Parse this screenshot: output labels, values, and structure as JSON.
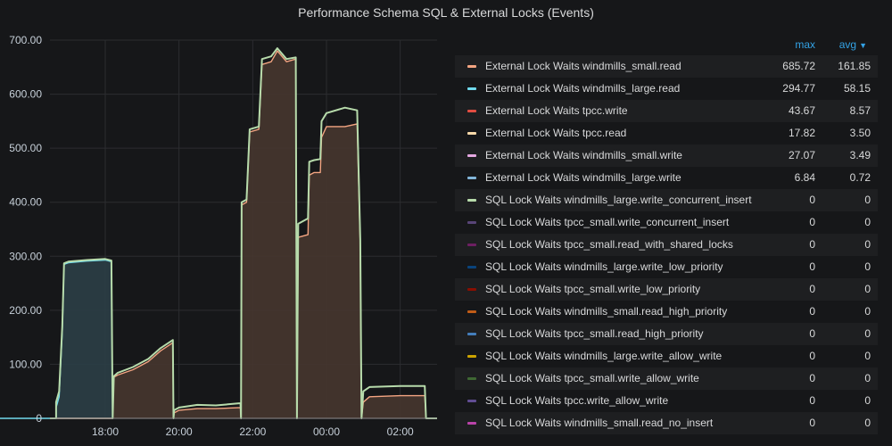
{
  "panel": {
    "title": "Performance Schema SQL & External Locks (Events)"
  },
  "legend": {
    "header_max": "max",
    "header_avg": "avg",
    "sort_icon": "chevron-down-icon",
    "rows": [
      {
        "name": "External Lock Waits windmills_small.read",
        "max": "685.72",
        "avg": "161.85",
        "color": "#f4a582"
      },
      {
        "name": "External Lock Waits windmills_large.read",
        "max": "294.77",
        "avg": "58.15",
        "color": "#70dbed"
      },
      {
        "name": "External Lock Waits tpcc.write",
        "max": "43.67",
        "avg": "8.57",
        "color": "#e24d42"
      },
      {
        "name": "External Lock Waits tpcc.read",
        "max": "17.82",
        "avg": "3.50",
        "color": "#f9d9a9"
      },
      {
        "name": "External Lock Waits windmills_small.write",
        "max": "27.07",
        "avg": "3.49",
        "color": "#e5a8e2"
      },
      {
        "name": "External Lock Waits windmills_large.write",
        "max": "6.84",
        "avg": "0.72",
        "color": "#82b5d8"
      },
      {
        "name": "SQL Lock Waits windmills_large.write_concurrent_insert",
        "max": "0",
        "avg": "0",
        "color": "#b7dbab"
      },
      {
        "name": "SQL Lock Waits tpcc_small.write_concurrent_insert",
        "max": "0",
        "avg": "0",
        "color": "#584477"
      },
      {
        "name": "SQL Lock Waits tpcc_small.read_with_shared_locks",
        "max": "0",
        "avg": "0",
        "color": "#6d1f62"
      },
      {
        "name": "SQL Lock Waits windmills_large.write_low_priority",
        "max": "0",
        "avg": "0",
        "color": "#0a437c"
      },
      {
        "name": "SQL Lock Waits tpcc_small.write_low_priority",
        "max": "0",
        "avg": "0",
        "color": "#890f02"
      },
      {
        "name": "SQL Lock Waits windmills_small.read_high_priority",
        "max": "0",
        "avg": "0",
        "color": "#c15c17"
      },
      {
        "name": "SQL Lock Waits tpcc_small.read_high_priority",
        "max": "0",
        "avg": "0",
        "color": "#447ebc"
      },
      {
        "name": "SQL Lock Waits windmills_large.write_allow_write",
        "max": "0",
        "avg": "0",
        "color": "#cca300"
      },
      {
        "name": "SQL Lock Waits tpcc_small.write_allow_write",
        "max": "0",
        "avg": "0",
        "color": "#3f6833"
      },
      {
        "name": "SQL Lock Waits tpcc.write_allow_write",
        "max": "0",
        "avg": "0",
        "color": "#614d93"
      },
      {
        "name": "SQL Lock Waits windmills_small.read_no_insert",
        "max": "0",
        "avg": "0",
        "color": "#ba43a9"
      }
    ]
  },
  "chart_data": {
    "type": "area",
    "title": "Performance Schema SQL & External Locks (Events)",
    "xlabel": "",
    "ylabel": "",
    "xlim": [
      "16:30",
      "03:00"
    ],
    "ylim": [
      0,
      700
    ],
    "y_ticks": [
      "0",
      "100.00",
      "200.00",
      "300.00",
      "400.00",
      "500.00",
      "600.00",
      "700.00"
    ],
    "x_ticks": [
      "18:00",
      "20:00",
      "22:00",
      "00:00",
      "02:00"
    ],
    "grid": true,
    "legend_position": "right",
    "series": [
      {
        "name": "External Lock Waits windmills_large.read",
        "color": "#70dbed",
        "fill": "#2b3e46",
        "points": [
          [
            "16:30",
            0
          ],
          [
            "16:40",
            0
          ],
          [
            "16:40",
            20
          ],
          [
            "16:45",
            40
          ],
          [
            "16:50",
            160
          ],
          [
            "16:53",
            285
          ],
          [
            "17:00",
            288
          ],
          [
            "17:30",
            291
          ],
          [
            "18:00",
            293
          ],
          [
            "18:10",
            290
          ],
          [
            "18:12",
            0
          ],
          [
            "03:00",
            0
          ]
        ]
      },
      {
        "name": "External Lock Waits windmills_small.read",
        "color": "#f4a582",
        "fill": "#46362f",
        "points": [
          [
            "16:30",
            0
          ],
          [
            "18:12",
            0
          ],
          [
            "18:12",
            75
          ],
          [
            "18:20",
            80
          ],
          [
            "18:45",
            90
          ],
          [
            "19:10",
            105
          ],
          [
            "19:30",
            125
          ],
          [
            "19:50",
            140
          ],
          [
            "19:51",
            0
          ],
          [
            "19:52",
            10
          ],
          [
            "20:00",
            15
          ],
          [
            "20:30",
            18
          ],
          [
            "21:00",
            18
          ],
          [
            "21:40",
            20
          ],
          [
            "21:41",
            0
          ],
          [
            "21:42",
            395
          ],
          [
            "21:50",
            400
          ],
          [
            "21:55",
            530
          ],
          [
            "22:10",
            535
          ],
          [
            "22:15",
            655
          ],
          [
            "22:30",
            660
          ],
          [
            "22:40",
            680
          ],
          [
            "22:55",
            660
          ],
          [
            "23:10",
            665
          ],
          [
            "23:12",
            0
          ],
          [
            "23:14",
            335
          ],
          [
            "23:30",
            340
          ],
          [
            "23:32",
            450
          ],
          [
            "23:40",
            455
          ],
          [
            "23:50",
            455
          ],
          [
            "23:52",
            520
          ],
          [
            "24:00",
            540
          ],
          [
            "24:30",
            540
          ],
          [
            "24:50",
            545
          ],
          [
            "24:55",
            320
          ],
          [
            "24:57",
            0
          ],
          [
            "25:00",
            30
          ],
          [
            "25:10",
            40
          ],
          [
            "26:00",
            42
          ],
          [
            "26:40",
            42
          ],
          [
            "26:42",
            0
          ],
          [
            "27:00",
            0
          ]
        ]
      },
      {
        "name": "SQL Lock Waits windmills_large.write_concurrent_insert",
        "color": "#b7dbab",
        "fill": "none",
        "points": [
          [
            "16:30",
            0
          ],
          [
            "16:40",
            0
          ],
          [
            "16:40",
            30
          ],
          [
            "16:45",
            50
          ],
          [
            "16:50",
            170
          ],
          [
            "16:53",
            287
          ],
          [
            "17:00",
            290
          ],
          [
            "17:30",
            293
          ],
          [
            "18:00",
            295
          ],
          [
            "18:10",
            292
          ],
          [
            "18:12",
            0
          ],
          [
            "18:14",
            78
          ],
          [
            "18:20",
            84
          ],
          [
            "18:45",
            95
          ],
          [
            "19:10",
            110
          ],
          [
            "19:30",
            130
          ],
          [
            "19:50",
            145
          ],
          [
            "19:51",
            0
          ],
          [
            "19:52",
            15
          ],
          [
            "20:00",
            20
          ],
          [
            "20:30",
            25
          ],
          [
            "21:00",
            24
          ],
          [
            "21:40",
            28
          ],
          [
            "21:41",
            0
          ],
          [
            "21:42",
            400
          ],
          [
            "21:50",
            405
          ],
          [
            "21:55",
            535
          ],
          [
            "22:10",
            540
          ],
          [
            "22:15",
            665
          ],
          [
            "22:30",
            670
          ],
          [
            "22:40",
            685
          ],
          [
            "22:55",
            665
          ],
          [
            "23:10",
            668
          ],
          [
            "23:12",
            0
          ],
          [
            "23:14",
            360
          ],
          [
            "23:30",
            370
          ],
          [
            "23:32",
            475
          ],
          [
            "23:40",
            478
          ],
          [
            "23:50",
            480
          ],
          [
            "23:52",
            550
          ],
          [
            "24:00",
            565
          ],
          [
            "24:30",
            575
          ],
          [
            "24:50",
            570
          ],
          [
            "24:55",
            330
          ],
          [
            "24:57",
            0
          ],
          [
            "25:00",
            50
          ],
          [
            "25:10",
            58
          ],
          [
            "26:00",
            60
          ],
          [
            "26:40",
            60
          ],
          [
            "26:42",
            0
          ],
          [
            "27:00",
            0
          ]
        ]
      }
    ]
  }
}
